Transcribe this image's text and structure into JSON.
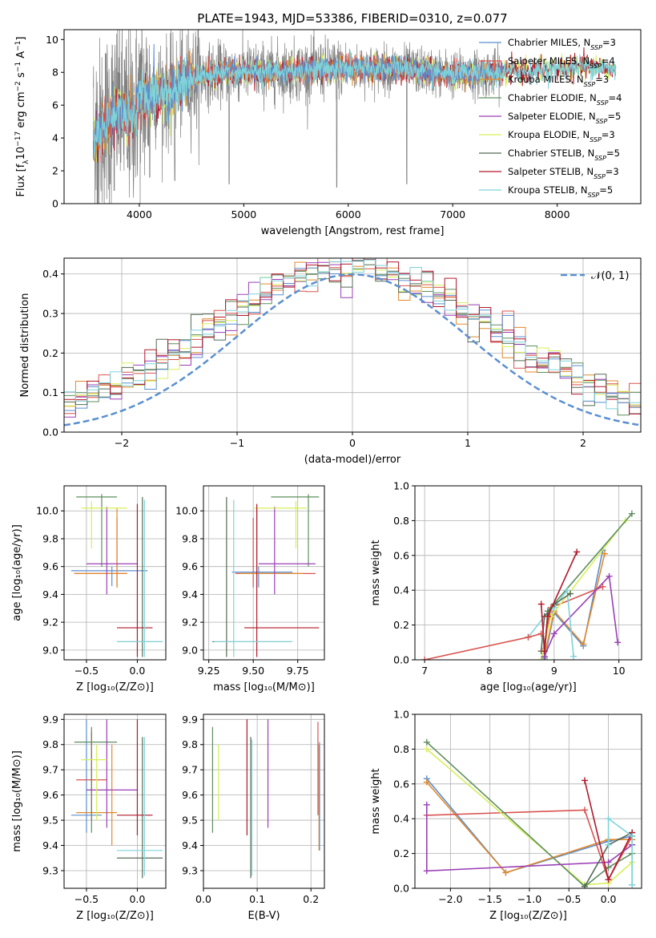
{
  "title": "PLATE=1943, MJD=53386, FIBERID=0310, z=0.077",
  "colors": {
    "Chabrier MILES": "#5b8fd0",
    "Salpeter MILES": "#d9534f",
    "Kroupa MILES": "#e08a2e",
    "Chabrier ELODIE": "#5f8f5f",
    "Salpeter ELODIE": "#9b3fb5",
    "Kroupa ELODIE": "#d6ef5a",
    "Chabrier STELIB": "#556b55",
    "Salpeter STELIB": "#b2182b",
    "Kroupa STELIB": "#7fd3d9",
    "data": "#808080",
    "normal": "#5b8fd0"
  },
  "legend_spectrum": [
    {
      "name": "Chabrier MILES",
      "n": "3"
    },
    {
      "name": "Salpeter MILES",
      "n": "4"
    },
    {
      "name": "Kroupa MILES",
      "n": "3"
    },
    {
      "name": "Chabrier ELODIE",
      "n": "4"
    },
    {
      "name": "Salpeter ELODIE",
      "n": "5"
    },
    {
      "name": "Kroupa ELODIE",
      "n": "3"
    },
    {
      "name": "Chabrier STELIB",
      "n": "5"
    },
    {
      "name": "Salpeter STELIB",
      "n": "3"
    },
    {
      "name": "Kroupa STELIB",
      "n": "5"
    }
  ],
  "chart_data": [
    {
      "id": "spectrum",
      "type": "line",
      "xlabel": "wavelength [Angstrom, rest frame]",
      "ylabel_parts": [
        "Flux [f",
        "λ",
        "10",
        "−17",
        " erg cm",
        "−2",
        " s",
        "−1",
        " A",
        "−1",
        "]"
      ],
      "xlim": [
        3280,
        8800
      ],
      "ylim": [
        0,
        10.6
      ],
      "xticks": [
        4000,
        5000,
        6000,
        7000,
        8000
      ],
      "yticks": [
        0,
        2,
        4,
        6,
        8,
        10
      ],
      "data_range": [
        3560,
        7460
      ],
      "continuum": [
        [
          3600,
          4.2
        ],
        [
          3700,
          5.2
        ],
        [
          3800,
          5.8
        ],
        [
          3900,
          5.2
        ],
        [
          4000,
          6.3
        ],
        [
          4100,
          6.6
        ],
        [
          4200,
          6.9
        ],
        [
          4300,
          6.7
        ],
        [
          4400,
          7.3
        ],
        [
          4500,
          7.7
        ],
        [
          4600,
          7.8
        ],
        [
          4800,
          8.0
        ],
        [
          5000,
          8.1
        ],
        [
          5200,
          8.0
        ],
        [
          5500,
          8.1
        ],
        [
          5800,
          8.2
        ],
        [
          6000,
          8.25
        ],
        [
          6200,
          8.2
        ],
        [
          6500,
          8.25
        ],
        [
          6800,
          8.0
        ],
        [
          7000,
          7.9
        ],
        [
          7300,
          7.9
        ],
        [
          7500,
          8.0
        ],
        [
          7800,
          8.1
        ],
        [
          8000,
          8.2
        ],
        [
          8300,
          8.4
        ],
        [
          8500,
          8.2
        ]
      ],
      "dips": [
        [
          3720,
          1.2
        ],
        [
          3760,
          0.8
        ],
        [
          3890,
          2.2
        ],
        [
          3925,
          5.0
        ],
        [
          3960,
          6.0
        ],
        [
          4100,
          1.6
        ],
        [
          4340,
          1.4
        ],
        [
          4860,
          1.2
        ],
        [
          5175,
          8.0
        ],
        [
          5890,
          1.0
        ],
        [
          6560,
          1.2
        ],
        [
          6810,
          7.9
        ],
        [
          7390,
          8.0
        ]
      ]
    },
    {
      "id": "residuals",
      "type": "step",
      "xlabel": "(data-model)/error",
      "ylabel": "Normed distribution",
      "xlim": [
        -2.5,
        2.5
      ],
      "ylim": [
        0,
        0.44
      ],
      "xticks": [
        -2,
        -1,
        0,
        1,
        2
      ],
      "yticks": [
        0.0,
        0.1,
        0.2,
        0.3,
        0.4
      ],
      "bin_width": 0.1,
      "legend": "𝒩(0, 1)",
      "normal": {
        "mean": 0,
        "sigma": 1
      }
    },
    {
      "id": "age-vs-Z",
      "type": "errorbar",
      "xlabel": "Z [log₁₀(Z/Z⊙)]",
      "ylabel": "age  [log₁₀(age/yr)]",
      "xlim": [
        -0.72,
        0.28
      ],
      "ylim": [
        8.93,
        10.18
      ],
      "xticks": [
        -0.5,
        0.0
      ],
      "yticks": [
        9.0,
        9.2,
        9.4,
        9.6,
        9.8,
        10.0
      ],
      "points": [
        {
          "m": "Chabrier MILES",
          "x": -0.25,
          "xl": -0.65,
          "xh": 0.1,
          "y": 9.57,
          "yl": 9.46,
          "yh": 9.6
        },
        {
          "m": "Salpeter MILES",
          "x": -0.2,
          "xl": -0.62,
          "xh": -0.1,
          "y": 9.55,
          "yl": 9.45,
          "yh": 9.95
        },
        {
          "m": "Kroupa MILES",
          "x": -0.2,
          "xl": -0.62,
          "xh": -0.1,
          "y": 9.55,
          "yl": 9.45,
          "yh": 10.02
        },
        {
          "m": "Chabrier ELODIE",
          "x": -0.35,
          "xl": -0.6,
          "xh": -0.2,
          "y": 10.1,
          "yl": 9.6,
          "yh": 10.12
        },
        {
          "m": "Salpeter ELODIE",
          "x": -0.3,
          "xl": -0.5,
          "xh": 0.0,
          "y": 9.62,
          "yl": 9.4,
          "yh": 10.03
        },
        {
          "m": "Kroupa ELODIE",
          "x": -0.45,
          "xl": -0.55,
          "xh": -0.1,
          "y": 10.02,
          "yl": 9.73,
          "yh": 10.07
        },
        {
          "m": "Chabrier STELIB",
          "x": 0.05,
          "xl": -0.2,
          "xh": 0.25,
          "y": 9.06,
          "yl": 8.95,
          "yh": 10.1
        },
        {
          "m": "Salpeter STELIB",
          "x": 0.0,
          "xl": -0.2,
          "xh": 0.15,
          "y": 9.16,
          "yl": 8.95,
          "yh": 10.05
        },
        {
          "m": "Kroupa STELIB",
          "x": 0.07,
          "xl": -0.2,
          "xh": 0.25,
          "y": 9.06,
          "yl": 8.95,
          "yh": 10.08
        }
      ]
    },
    {
      "id": "age-vs-mass",
      "type": "errorbar",
      "xlabel": "mass [log₁₀(M/M⊙)]",
      "ylabel": "",
      "xlim": [
        9.22,
        9.9
      ],
      "ylim": [
        8.93,
        10.18
      ],
      "xticks": [
        9.25,
        9.5,
        9.75
      ],
      "yticks": [
        9.0,
        9.2,
        9.4,
        9.6,
        9.8,
        10.0
      ],
      "points": [
        {
          "m": "Chabrier MILES",
          "x": 9.53,
          "xl": 9.38,
          "xh": 9.72,
          "y": 9.56,
          "yl": 9.45,
          "yh": 9.6
        },
        {
          "m": "Salpeter MILES",
          "x": 9.5,
          "xl": 9.4,
          "xh": 9.85,
          "y": 9.55,
          "yl": 9.45,
          "yh": 9.95
        },
        {
          "m": "Kroupa MILES",
          "x": 9.52,
          "xl": 9.42,
          "xh": 9.78,
          "y": 9.55,
          "yl": 9.45,
          "yh": 10.02
        },
        {
          "m": "Chabrier ELODIE",
          "x": 9.81,
          "xl": 9.6,
          "xh": 9.87,
          "y": 10.1,
          "yl": 9.6,
          "yh": 10.12
        },
        {
          "m": "Salpeter ELODIE",
          "x": 9.62,
          "xl": 9.53,
          "xh": 9.85,
          "y": 9.62,
          "yl": 9.4,
          "yh": 10.03
        },
        {
          "m": "Kroupa ELODIE",
          "x": 9.74,
          "xl": 9.5,
          "xh": 9.8,
          "y": 10.02,
          "yl": 9.73,
          "yh": 10.07
        },
        {
          "m": "Chabrier STELIB",
          "x": 9.35,
          "xl": 9.27,
          "xh": 9.72,
          "y": 9.06,
          "yl": 8.95,
          "yh": 10.1
        },
        {
          "m": "Salpeter STELIB",
          "x": 9.52,
          "xl": 9.45,
          "xh": 9.87,
          "y": 9.16,
          "yl": 8.95,
          "yh": 10.05
        },
        {
          "m": "Kroupa STELIB",
          "x": 9.39,
          "xl": 9.28,
          "xh": 9.72,
          "y": 9.06,
          "yl": 8.95,
          "yh": 10.08
        }
      ]
    },
    {
      "id": "weight-vs-age",
      "type": "line",
      "xlabel": "age  [log₁₀(age/yr)]",
      "ylabel": "mass weight",
      "xlim": [
        6.85,
        10.35
      ],
      "ylim": [
        0,
        1
      ],
      "xticks": [
        7,
        8,
        9,
        10
      ],
      "yticks": [
        0.0,
        0.2,
        0.4,
        0.6,
        0.8,
        1.0
      ],
      "series": [
        {
          "m": "Chabrier MILES",
          "x": [
            8.85,
            9.0,
            9.45,
            9.75
          ],
          "y": [
            0.0,
            0.27,
            0.08,
            0.63
          ]
        },
        {
          "m": "Kroupa MILES",
          "x": [
            8.85,
            9.0,
            9.45,
            9.78
          ],
          "y": [
            0.02,
            0.28,
            0.09,
            0.61
          ]
        },
        {
          "m": "Salpeter MILES",
          "x": [
            8.83,
            8.95,
            9.75
          ],
          "y": [
            0.05,
            0.3,
            0.42
          ]
        },
        {
          "m": "Kroupa ELODIE",
          "x": [
            8.8,
            8.95,
            10.1
          ],
          "y": [
            0.0,
            0.25,
            0.8
          ]
        },
        {
          "m": "Chabrier ELODIE",
          "x": [
            8.85,
            8.9,
            10.2
          ],
          "y": [
            0.01,
            0.28,
            0.84
          ]
        },
        {
          "m": "Salpeter ELODIE",
          "x": [
            8.85,
            9.0,
            9.85,
            9.98
          ],
          "y": [
            0.02,
            0.15,
            0.48,
            0.1
          ]
        },
        {
          "m": "Kroupa STELIB",
          "x": [
            8.6,
            8.85,
            9.0,
            9.2,
            9.3
          ],
          "y": [
            0.13,
            0.25,
            0.3,
            0.4,
            0.02
          ]
        },
        {
          "m": "Chabrier STELIB",
          "x": [
            8.8,
            8.85,
            9.0,
            9.25
          ],
          "y": [
            0.05,
            0.25,
            0.32,
            0.38
          ]
        },
        {
          "m": "Salpeter STELIB",
          "x": [
            8.8,
            8.85,
            8.9,
            9.35
          ],
          "y": [
            0.32,
            0.05,
            0.25,
            0.62
          ]
        },
        {
          "m": "Salpeter MILES",
          "x": [
            7.0,
            8.6,
            8.8
          ],
          "y": [
            0.0,
            0.13,
            0.15
          ]
        }
      ]
    },
    {
      "id": "mass-vs-Z",
      "type": "errorbar",
      "xlabel": "Z [log₁₀(Z/Z⊙)]",
      "ylabel": "mass [log₁₀(M/M⊙)]",
      "xlim": [
        -0.72,
        0.28
      ],
      "ylim": [
        9.23,
        9.92
      ],
      "xticks": [
        -0.5,
        0.0
      ],
      "yticks": [
        9.3,
        9.4,
        9.5,
        9.6,
        9.7,
        9.8,
        9.9
      ],
      "points": [
        {
          "m": "Chabrier MILES",
          "x": -0.5,
          "xl": -0.65,
          "xh": -0.35,
          "y": 9.52,
          "yl": 9.45,
          "yh": 9.9
        },
        {
          "m": "Salpeter MILES",
          "x": -0.45,
          "xl": -0.6,
          "xh": -0.3,
          "y": 9.66,
          "yl": 9.5,
          "yh": 9.85
        },
        {
          "m": "Kroupa MILES",
          "x": -0.25,
          "xl": -0.6,
          "xh": -0.2,
          "y": 9.53,
          "yl": 9.4,
          "yh": 9.8
        },
        {
          "m": "Chabrier ELODIE",
          "x": -0.45,
          "xl": -0.62,
          "xh": -0.2,
          "y": 9.81,
          "yl": 9.45,
          "yh": 9.87
        },
        {
          "m": "Salpeter ELODIE",
          "x": -0.3,
          "xl": -0.5,
          "xh": 0.0,
          "y": 9.62,
          "yl": 9.47,
          "yh": 9.9
        },
        {
          "m": "Kroupa ELODIE",
          "x": -0.4,
          "xl": -0.55,
          "xh": -0.3,
          "y": 9.74,
          "yl": 9.5,
          "yh": 9.8
        },
        {
          "m": "Chabrier STELIB",
          "x": 0.05,
          "xl": -0.2,
          "xh": 0.25,
          "y": 9.35,
          "yl": 9.27,
          "yh": 9.83
        },
        {
          "m": "Salpeter STELIB",
          "x": 0.0,
          "xl": -0.2,
          "xh": 0.15,
          "y": 9.52,
          "yl": 9.44,
          "yh": 9.9
        },
        {
          "m": "Kroupa STELIB",
          "x": 0.07,
          "xl": -0.2,
          "xh": 0.25,
          "y": 9.38,
          "yl": 9.28,
          "yh": 9.83
        }
      ]
    },
    {
      "id": "mass-vs-ebv",
      "type": "errorbar",
      "xlabel": "E(B-V)",
      "ylabel": "",
      "xlim": [
        0.0,
        0.225
      ],
      "ylim": [
        9.23,
        9.92
      ],
      "xticks": [
        0.0,
        0.1,
        0.2
      ],
      "yticks": [
        9.3,
        9.4,
        9.5,
        9.6,
        9.7,
        9.8,
        9.9
      ],
      "points": [
        {
          "m": "Chabrier ELODIE",
          "x": 0.017,
          "y": 9.66,
          "yl": 9.45,
          "yh": 9.87
        },
        {
          "m": "Kroupa ELODIE",
          "x": 0.028,
          "y": 9.65,
          "yl": 9.5,
          "yh": 9.8
        },
        {
          "m": "Salpeter STELIB",
          "x": 0.081,
          "y": 9.67,
          "yl": 9.44,
          "yh": 9.9
        },
        {
          "m": "Chabrier STELIB",
          "x": 0.088,
          "y": 9.55,
          "yl": 9.27,
          "yh": 9.83
        },
        {
          "m": "Kroupa STELIB",
          "x": 0.09,
          "y": 9.55,
          "yl": 9.28,
          "yh": 9.82
        },
        {
          "m": "Salpeter ELODIE",
          "x": 0.12,
          "y": 9.69,
          "yl": 9.47,
          "yh": 9.9
        },
        {
          "m": "Salpeter MILES",
          "x": 0.213,
          "y": 9.7,
          "yl": 9.52,
          "yh": 9.89
        },
        {
          "m": "Kroupa MILES",
          "x": 0.215,
          "y": 9.6,
          "yl": 9.38,
          "yh": 9.8
        },
        {
          "m": "Chabrier MILES",
          "x": 0.216,
          "y": 9.6,
          "yl": 9.38,
          "yh": 9.81
        }
      ]
    },
    {
      "id": "weight-vs-Z",
      "type": "line",
      "xlabel": "Z [log₁₀(Z/Z⊙)]",
      "ylabel": "mass weight",
      "xlim": [
        -2.45,
        0.42
      ],
      "ylim": [
        0,
        1
      ],
      "xticks": [
        -2.0,
        -1.5,
        -1.0,
        -0.5,
        0.0
      ],
      "yticks": [
        0.0,
        0.2,
        0.4,
        0.6,
        0.8,
        1.0
      ],
      "series": [
        {
          "m": "Chabrier MILES",
          "x": [
            -2.3,
            -1.3,
            0.0,
            0.3,
            0.3
          ],
          "y": [
            0.63,
            0.09,
            0.27,
            0.3,
            0.02
          ]
        },
        {
          "m": "Kroupa MILES",
          "x": [
            -2.3,
            -1.3,
            0.0,
            0.3
          ],
          "y": [
            0.61,
            0.09,
            0.28,
            0.28
          ]
        },
        {
          "m": "Salpeter MILES",
          "x": [
            -2.3,
            -0.3,
            0.0,
            0.3
          ],
          "y": [
            0.42,
            0.45,
            0.05,
            0.3
          ]
        },
        {
          "m": "Kroupa ELODIE",
          "x": [
            -2.3,
            -0.3,
            0.0,
            0.3
          ],
          "y": [
            0.8,
            0.02,
            0.03,
            0.15
          ]
        },
        {
          "m": "Chabrier ELODIE",
          "x": [
            -2.3,
            -0.3,
            0.0,
            0.3
          ],
          "y": [
            0.84,
            0.01,
            0.12,
            0.2
          ]
        },
        {
          "m": "Salpeter ELODIE",
          "x": [
            -2.3,
            -2.3,
            0.0,
            0.3
          ],
          "y": [
            0.48,
            0.1,
            0.15,
            0.25
          ]
        },
        {
          "m": "Chabrier STELIB",
          "x": [
            -0.3,
            0.0,
            0.3
          ],
          "y": [
            0.01,
            0.25,
            0.32
          ]
        },
        {
          "m": "Salpeter STELIB",
          "x": [
            -0.3,
            0.0,
            0.3
          ],
          "y": [
            0.62,
            0.05,
            0.32
          ]
        },
        {
          "m": "Kroupa STELIB",
          "x": [
            0.0,
            0.0,
            0.3,
            0.3
          ],
          "y": [
            0.25,
            0.4,
            0.3,
            0.02
          ]
        }
      ]
    }
  ]
}
